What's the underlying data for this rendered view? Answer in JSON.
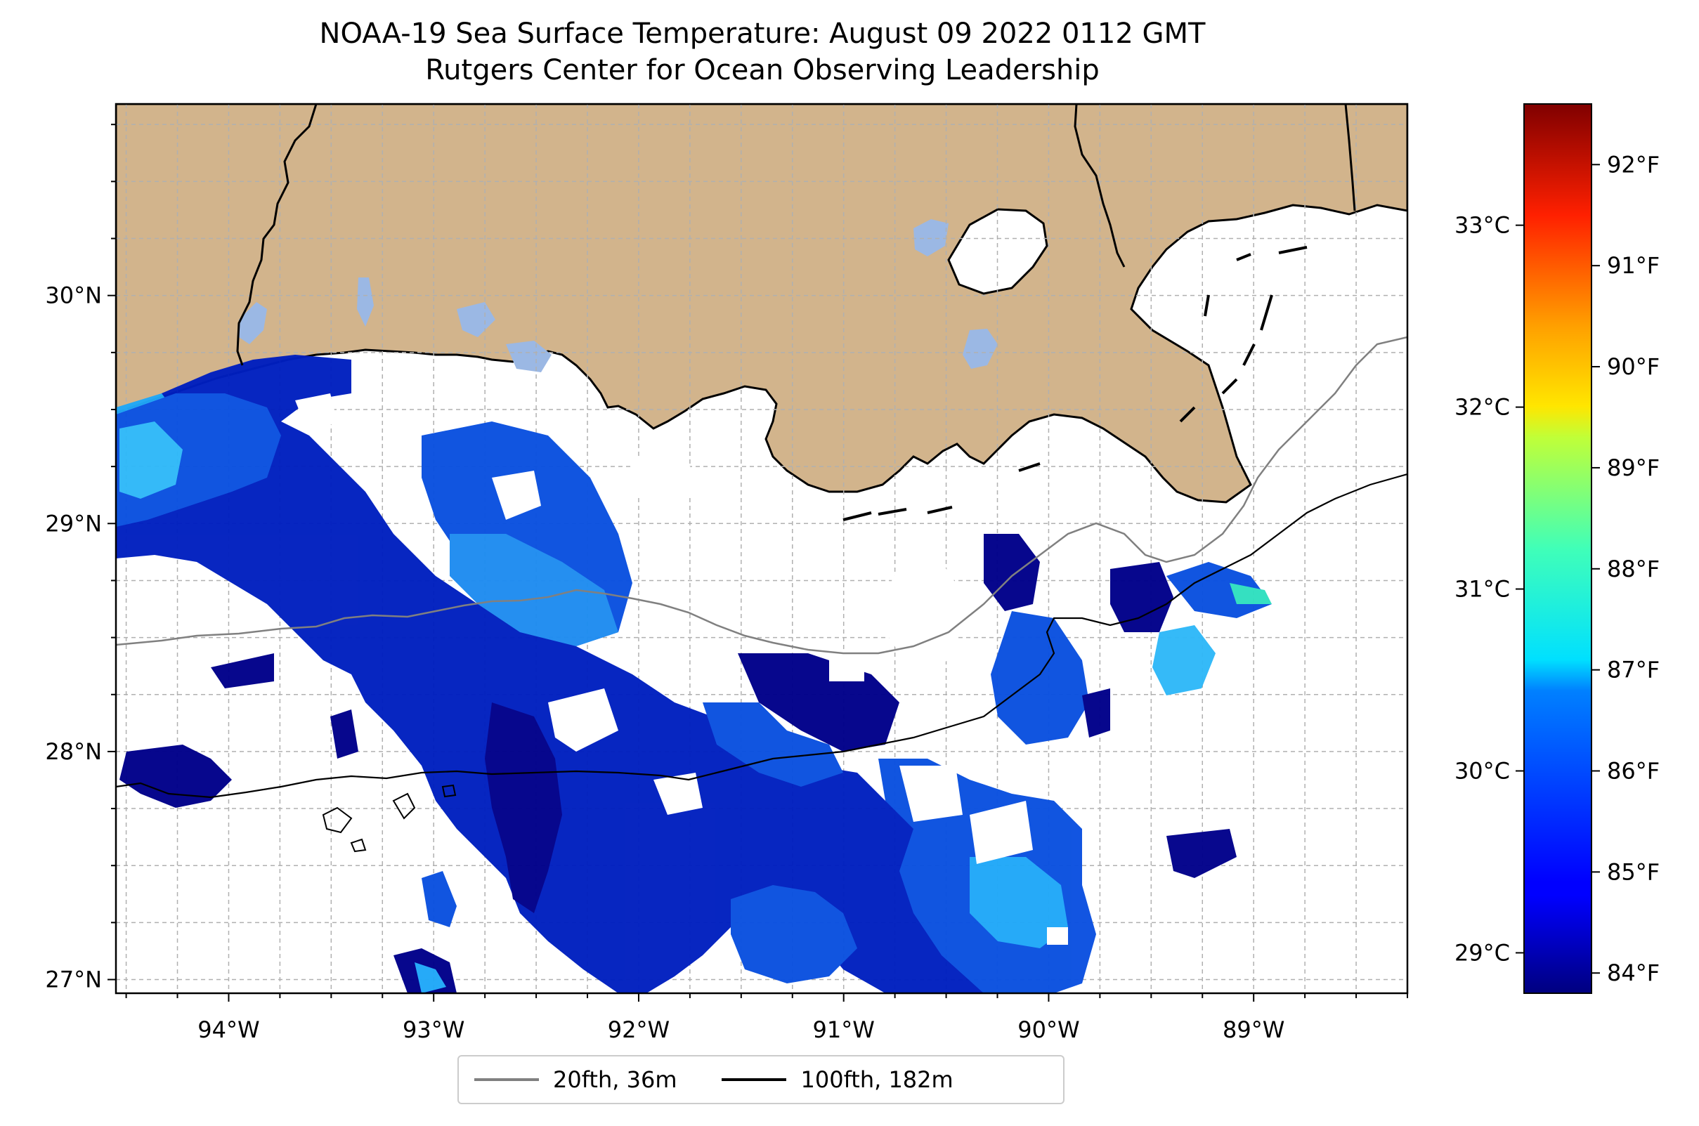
{
  "title": {
    "line1": "NOAA-19 Sea Surface Temperature: August 09 2022 0112 GMT",
    "line2": "Rutgers Center for Ocean Observing Leadership"
  },
  "map": {
    "lon_range": [
      -94.55,
      -88.25
    ],
    "lat_range": [
      26.94,
      30.84
    ],
    "x_ticks": [
      "94°W",
      "93°W",
      "92°W",
      "91°W",
      "90°W",
      "89°W"
    ],
    "y_ticks": [
      "27°N",
      "28°N",
      "29°N",
      "30°N"
    ],
    "gridlines": true,
    "land_color": "#d2b48c",
    "lake_color": "#9bb8e4",
    "ocean_color": "#ffffff"
  },
  "colorbar": {
    "colormap": "jet",
    "f_range": [
      83.8,
      92.6
    ],
    "f_ticks": [
      "84°F",
      "85°F",
      "86°F",
      "87°F",
      "88°F",
      "89°F",
      "90°F",
      "91°F",
      "92°F"
    ],
    "c_ticks": [
      "29°C",
      "30°C",
      "31°C",
      "32°C",
      "33°C"
    ]
  },
  "legend": {
    "placement": "bottom-center",
    "items": [
      {
        "label": "20fth, 36m",
        "color": "#808080"
      },
      {
        "label": "100fth, 182m",
        "color": "#000000"
      }
    ]
  }
}
